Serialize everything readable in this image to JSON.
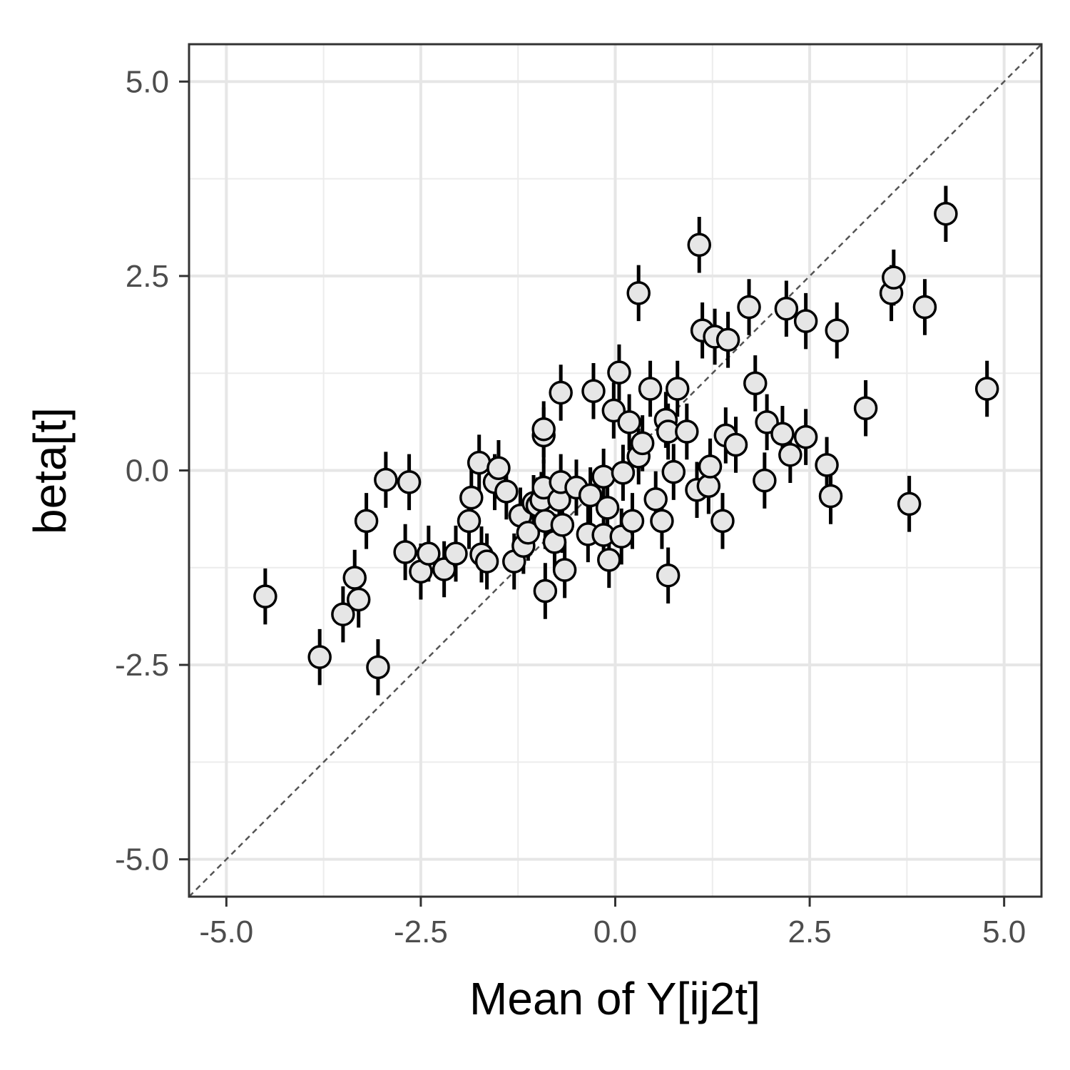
{
  "chart_data": {
    "type": "scatter",
    "xlabel": "Mean of Y[ij2t]",
    "ylabel": "beta[t]",
    "xlim": [
      -5.48,
      5.48
    ],
    "ylim": [
      -5.48,
      5.48
    ],
    "x_ticks": [
      -5.0,
      -2.5,
      0.0,
      2.5,
      5.0
    ],
    "y_ticks": [
      -5.0,
      -2.5,
      0.0,
      2.5,
      5.0
    ],
    "x_tick_labels": [
      "-5.0",
      "-2.5",
      "0.0",
      "2.5",
      "5.0"
    ],
    "y_tick_labels": [
      "-5.0",
      "-2.5",
      "0.0",
      "2.5",
      "5.0"
    ],
    "grid": true,
    "reference_line": "y = x (dashed)",
    "error_bar_half_width": 0.36,
    "point_fill": "#e6e6e6",
    "point_stroke": "#000000",
    "points": [
      {
        "x": -4.5,
        "y": -1.62
      },
      {
        "x": -3.8,
        "y": -2.4
      },
      {
        "x": -3.5,
        "y": -1.85
      },
      {
        "x": -3.35,
        "y": -1.38
      },
      {
        "x": -3.3,
        "y": -1.66
      },
      {
        "x": -3.2,
        "y": -0.65
      },
      {
        "x": -3.05,
        "y": -2.53
      },
      {
        "x": -2.95,
        "y": -0.12
      },
      {
        "x": -2.7,
        "y": -1.05
      },
      {
        "x": -2.65,
        "y": -0.15
      },
      {
        "x": -2.5,
        "y": -1.3
      },
      {
        "x": -2.4,
        "y": -1.07
      },
      {
        "x": -2.2,
        "y": -1.27
      },
      {
        "x": -2.05,
        "y": -1.07
      },
      {
        "x": -1.88,
        "y": -0.65
      },
      {
        "x": -1.85,
        "y": -0.35
      },
      {
        "x": -1.75,
        "y": 0.1
      },
      {
        "x": -1.72,
        "y": -1.08
      },
      {
        "x": -1.65,
        "y": -1.17
      },
      {
        "x": -1.55,
        "y": -0.15
      },
      {
        "x": -1.5,
        "y": 0.03
      },
      {
        "x": -1.4,
        "y": -0.27
      },
      {
        "x": -1.3,
        "y": -1.17
      },
      {
        "x": -1.22,
        "y": -0.58
      },
      {
        "x": -1.18,
        "y": -0.97
      },
      {
        "x": -1.12,
        "y": -0.8
      },
      {
        "x": -1.05,
        "y": -0.42
      },
      {
        "x": -1.0,
        "y": -0.45
      },
      {
        "x": -0.95,
        "y": -0.38
      },
      {
        "x": -0.92,
        "y": 0.45
      },
      {
        "x": -0.92,
        "y": 0.53
      },
      {
        "x": -0.92,
        "y": -0.22
      },
      {
        "x": -0.9,
        "y": -0.65
      },
      {
        "x": -0.9,
        "y": -1.55
      },
      {
        "x": -0.78,
        "y": -0.92
      },
      {
        "x": -0.72,
        "y": -0.38
      },
      {
        "x": -0.7,
        "y": 1.0
      },
      {
        "x": -0.7,
        "y": -0.15
      },
      {
        "x": -0.68,
        "y": -0.7
      },
      {
        "x": -0.65,
        "y": -1.28
      },
      {
        "x": -0.5,
        "y": -0.22
      },
      {
        "x": -0.35,
        "y": -0.82
      },
      {
        "x": -0.32,
        "y": -0.32
      },
      {
        "x": -0.28,
        "y": 1.02
      },
      {
        "x": -0.15,
        "y": -0.08
      },
      {
        "x": -0.15,
        "y": -0.83
      },
      {
        "x": -0.1,
        "y": -0.48
      },
      {
        "x": -0.08,
        "y": -1.15
      },
      {
        "x": -0.02,
        "y": 0.77
      },
      {
        "x": 0.05,
        "y": 1.26
      },
      {
        "x": 0.08,
        "y": -0.85
      },
      {
        "x": 0.1,
        "y": -0.03
      },
      {
        "x": 0.18,
        "y": 0.62
      },
      {
        "x": 0.22,
        "y": -0.65
      },
      {
        "x": 0.3,
        "y": 0.18
      },
      {
        "x": 0.3,
        "y": 2.28
      },
      {
        "x": 0.35,
        "y": 0.35
      },
      {
        "x": 0.45,
        "y": 1.05
      },
      {
        "x": 0.52,
        "y": -0.37
      },
      {
        "x": 0.6,
        "y": -0.65
      },
      {
        "x": 0.65,
        "y": 0.65
      },
      {
        "x": 0.68,
        "y": 0.5
      },
      {
        "x": 0.68,
        "y": -1.35
      },
      {
        "x": 0.75,
        "y": -0.02
      },
      {
        "x": 0.8,
        "y": 1.05
      },
      {
        "x": 0.92,
        "y": 0.5
      },
      {
        "x": 1.05,
        "y": -0.25
      },
      {
        "x": 1.08,
        "y": 2.9
      },
      {
        "x": 1.12,
        "y": 1.8
      },
      {
        "x": 1.2,
        "y": -0.2
      },
      {
        "x": 1.22,
        "y": 0.05
      },
      {
        "x": 1.28,
        "y": 1.72
      },
      {
        "x": 1.38,
        "y": -0.65
      },
      {
        "x": 1.42,
        "y": 0.45
      },
      {
        "x": 1.45,
        "y": 1.68
      },
      {
        "x": 1.55,
        "y": 0.33
      },
      {
        "x": 1.72,
        "y": 2.1
      },
      {
        "x": 1.8,
        "y": 1.12
      },
      {
        "x": 1.92,
        "y": -0.13
      },
      {
        "x": 1.95,
        "y": 0.62
      },
      {
        "x": 2.15,
        "y": 0.47
      },
      {
        "x": 2.2,
        "y": 2.08
      },
      {
        "x": 2.25,
        "y": 0.2
      },
      {
        "x": 2.45,
        "y": 1.92
      },
      {
        "x": 2.45,
        "y": 0.43
      },
      {
        "x": 2.72,
        "y": 0.07
      },
      {
        "x": 2.77,
        "y": -0.33
      },
      {
        "x": 2.85,
        "y": 1.8
      },
      {
        "x": 3.22,
        "y": 0.8
      },
      {
        "x": 3.55,
        "y": 2.28
      },
      {
        "x": 3.58,
        "y": 2.48
      },
      {
        "x": 3.78,
        "y": -0.43
      },
      {
        "x": 3.98,
        "y": 2.1
      },
      {
        "x": 4.25,
        "y": 3.3
      },
      {
        "x": 4.78,
        "y": 1.05
      }
    ]
  }
}
